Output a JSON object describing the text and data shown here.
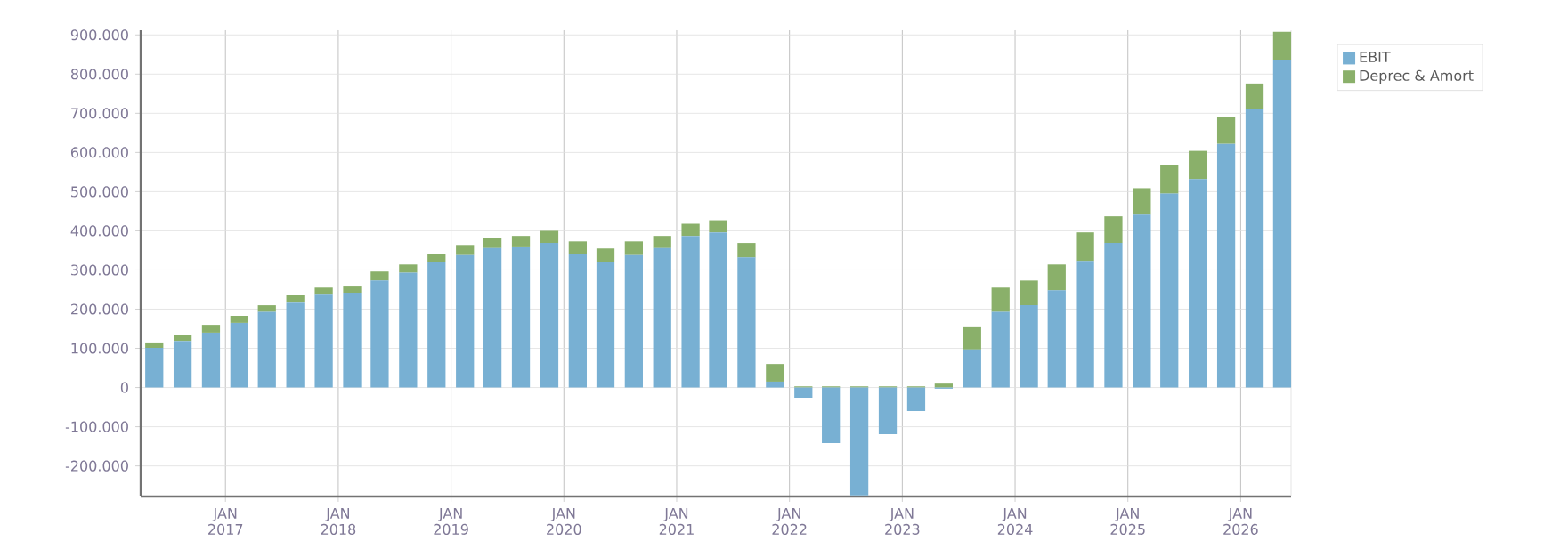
{
  "chart_data": {
    "type": "bar",
    "stacked": true,
    "x": [
      "2016-05-15",
      "2016-08-15",
      "2016-11-15",
      "2017-02-15",
      "2017-05-15",
      "2017-08-15",
      "2017-11-15",
      "2018-02-15",
      "2018-05-15",
      "2018-08-15",
      "2018-11-15",
      "2019-02-15",
      "2019-05-15",
      "2019-08-15",
      "2019-11-15",
      "2020-02-15",
      "2020-05-15",
      "2020-08-15",
      "2020-11-15",
      "2021-02-15",
      "2021-05-15",
      "2021-08-15",
      "2021-11-15",
      "2022-02-15",
      "2022-05-15",
      "2022-08-15",
      "2022-11-15",
      "2023-02-15",
      "2023-05-15",
      "2023-08-15",
      "2023-11-15",
      "2024-02-15",
      "2024-05-15",
      "2024-08-15",
      "2024-11-15",
      "2025-02-15",
      "2025-05-15",
      "2025-08-15",
      "2025-11-15",
      "2026-02-15",
      "2026-05-15"
    ],
    "series": [
      {
        "name": "EBIT",
        "color": "#78b0d3",
        "values": [
          101000,
          119000,
          140000,
          165000,
          193000,
          219000,
          239000,
          242000,
          273000,
          293000,
          320000,
          338000,
          356000,
          358000,
          369000,
          341000,
          320000,
          338000,
          356000,
          387000,
          396000,
          332000,
          15000,
          -26000,
          -142000,
          -275000,
          -119000,
          -60000,
          -3000,
          97000,
          193000,
          210000,
          248000,
          323000,
          369000,
          441000,
          495000,
          532000,
          622000,
          710000,
          837000
        ]
      },
      {
        "name": "Deprec & Amort",
        "color": "#8ab06a",
        "values": [
          14000,
          14000,
          20000,
          18000,
          17000,
          18000,
          16000,
          18000,
          23000,
          21000,
          21000,
          26000,
          26000,
          29000,
          31000,
          32000,
          35000,
          35000,
          31000,
          31000,
          31000,
          37000,
          45000,
          3000,
          3000,
          3000,
          3000,
          3000,
          10000,
          59000,
          62000,
          63000,
          66000,
          73000,
          68000,
          68000,
          73000,
          72000,
          68000,
          66000,
          71000
        ]
      }
    ],
    "xlim": [
      "2016-04-01",
      "2026-06-13"
    ],
    "xticks": [
      {
        "value": "2017-01",
        "label": "JAN 2017"
      },
      {
        "value": "2018-01",
        "label": "JAN 2018"
      },
      {
        "value": "2019-01",
        "label": "JAN 2019"
      },
      {
        "value": "2020-01",
        "label": "JAN 2020"
      },
      {
        "value": "2021-01",
        "label": "JAN 2021"
      },
      {
        "value": "2022-01",
        "label": "JAN 2022"
      },
      {
        "value": "2023-01",
        "label": "JAN 2023"
      },
      {
        "value": "2024-01",
        "label": "JAN 2024"
      },
      {
        "value": "2025-01",
        "label": "JAN 2025"
      },
      {
        "value": "2026-01",
        "label": "JAN 2026"
      }
    ],
    "ylim": [
      -278000,
      912000
    ],
    "yticks": [
      {
        "value": -200000,
        "label": "-200.000"
      },
      {
        "value": -100000,
        "label": "-100.000"
      },
      0,
      {
        "value": 100000,
        "label": "100.000"
      },
      {
        "value": 200000,
        "label": "200.000"
      },
      {
        "value": 300000,
        "label": "300.000"
      },
      {
        "value": 400000,
        "label": "400.000"
      },
      {
        "value": 500000,
        "label": "500.000"
      },
      {
        "value": 600000,
        "label": "600.000"
      },
      {
        "value": 700000,
        "label": "700.000"
      },
      {
        "value": 800000,
        "label": "800.000"
      },
      {
        "value": 900000,
        "label": "900.000"
      }
    ],
    "grid": true,
    "legend": "top right"
  }
}
